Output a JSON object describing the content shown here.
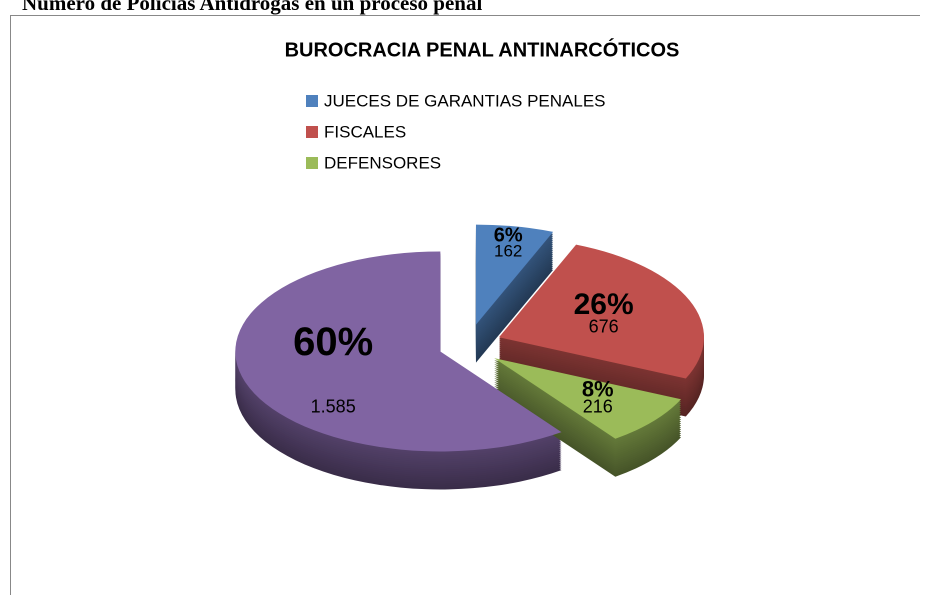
{
  "heading": "Número de Policías Antidrogas en un proceso penal",
  "chart_data": {
    "type": "pie",
    "three_d": true,
    "exploded": true,
    "title": "BUROCRACIA PENAL ANTINARCÓTICOS",
    "categories": [
      "JUECES DE GARANTIAS PENALES",
      "FISCALES",
      "DEFENSORES",
      null
    ],
    "values": [
      162,
      676,
      216,
      1585
    ],
    "value_labels": [
      "162",
      "676",
      "216",
      "1.585"
    ],
    "percent_labels": [
      "6%",
      "26%",
      "8%",
      "60%"
    ],
    "colors": [
      "#4f81bd",
      "#c0504d",
      "#9bbb59",
      "#8064a2"
    ],
    "legend": "top"
  }
}
